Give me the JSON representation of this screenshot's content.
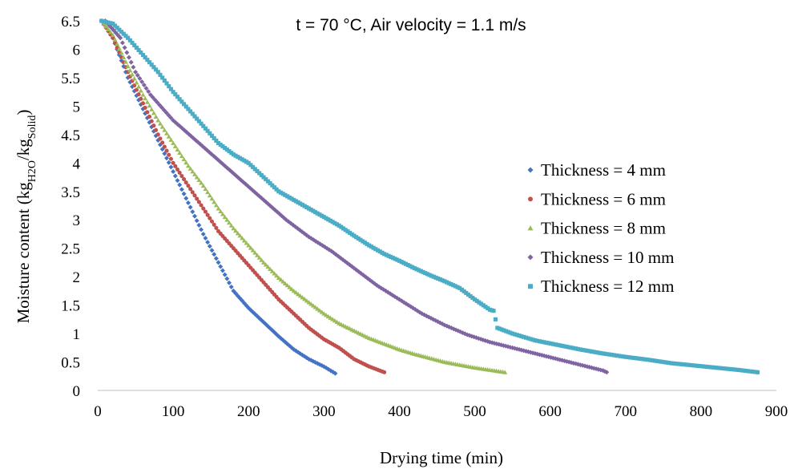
{
  "chart_data": {
    "type": "scatter",
    "title": "t = 70 °C, Air velocity = 1.1 m/s",
    "xlabel": "Drying time (min)",
    "ylabel": {
      "prefix": "Moisture content (kg",
      "sub1": "H2O",
      "middle": "/kg",
      "sub2": "Solid",
      "suffix": ")"
    },
    "xlim": [
      0,
      900
    ],
    "ylim": [
      0,
      6.5
    ],
    "x_ticks": [
      "0",
      "100",
      "200",
      "300",
      "400",
      "500",
      "600",
      "700",
      "800",
      "900"
    ],
    "y_ticks": [
      "0",
      "0.5",
      "1",
      "1.5",
      "2",
      "2.5",
      "3",
      "3.5",
      "4",
      "4.5",
      "5",
      "5.5",
      "6",
      "6.5"
    ],
    "grid": false,
    "legend_position": "right",
    "series": [
      {
        "name": "Thickness = 4 mm",
        "color": "#4472C4",
        "marker": "diamond",
        "points": [
          [
            5,
            6.5
          ],
          [
            20,
            6.2
          ],
          [
            40,
            5.5
          ],
          [
            60,
            4.95
          ],
          [
            80,
            4.4
          ],
          [
            100,
            3.85
          ],
          [
            120,
            3.3
          ],
          [
            140,
            2.75
          ],
          [
            160,
            2.25
          ],
          [
            180,
            1.75
          ],
          [
            200,
            1.45
          ],
          [
            220,
            1.2
          ],
          [
            240,
            0.95
          ],
          [
            260,
            0.72
          ],
          [
            280,
            0.55
          ],
          [
            300,
            0.42
          ],
          [
            315,
            0.3
          ]
        ]
      },
      {
        "name": "Thickness = 6 mm",
        "color": "#C0504D",
        "marker": "circle",
        "points": [
          [
            5,
            6.5
          ],
          [
            20,
            6.2
          ],
          [
            40,
            5.6
          ],
          [
            60,
            5.05
          ],
          [
            80,
            4.5
          ],
          [
            100,
            4.0
          ],
          [
            120,
            3.6
          ],
          [
            140,
            3.2
          ],
          [
            160,
            2.8
          ],
          [
            180,
            2.5
          ],
          [
            200,
            2.2
          ],
          [
            220,
            1.9
          ],
          [
            240,
            1.6
          ],
          [
            260,
            1.35
          ],
          [
            280,
            1.1
          ],
          [
            300,
            0.9
          ],
          [
            320,
            0.75
          ],
          [
            340,
            0.55
          ],
          [
            360,
            0.42
          ],
          [
            380,
            0.32
          ]
        ]
      },
      {
        "name": "Thickness = 8 mm",
        "color": "#9BBB59",
        "marker": "triangle",
        "points": [
          [
            5,
            6.5
          ],
          [
            20,
            6.25
          ],
          [
            40,
            5.7
          ],
          [
            60,
            5.2
          ],
          [
            80,
            4.75
          ],
          [
            100,
            4.35
          ],
          [
            120,
            3.95
          ],
          [
            140,
            3.6
          ],
          [
            160,
            3.2
          ],
          [
            180,
            2.85
          ],
          [
            200,
            2.55
          ],
          [
            220,
            2.25
          ],
          [
            240,
            1.98
          ],
          [
            260,
            1.75
          ],
          [
            280,
            1.55
          ],
          [
            300,
            1.35
          ],
          [
            320,
            1.18
          ],
          [
            340,
            1.05
          ],
          [
            360,
            0.92
          ],
          [
            380,
            0.82
          ],
          [
            400,
            0.72
          ],
          [
            420,
            0.64
          ],
          [
            440,
            0.57
          ],
          [
            460,
            0.5
          ],
          [
            480,
            0.45
          ],
          [
            500,
            0.4
          ],
          [
            520,
            0.36
          ],
          [
            540,
            0.32
          ]
        ]
      },
      {
        "name": "Thickness = 10 mm",
        "color": "#8064A2",
        "marker": "diamond",
        "points": [
          [
            10,
            6.5
          ],
          [
            30,
            6.2
          ],
          [
            50,
            5.6
          ],
          [
            70,
            5.2
          ],
          [
            100,
            4.75
          ],
          [
            130,
            4.4
          ],
          [
            160,
            4.05
          ],
          [
            190,
            3.7
          ],
          [
            220,
            3.35
          ],
          [
            250,
            3.0
          ],
          [
            280,
            2.7
          ],
          [
            310,
            2.45
          ],
          [
            340,
            2.15
          ],
          [
            370,
            1.85
          ],
          [
            400,
            1.6
          ],
          [
            430,
            1.35
          ],
          [
            460,
            1.15
          ],
          [
            490,
            0.98
          ],
          [
            520,
            0.85
          ],
          [
            550,
            0.75
          ],
          [
            580,
            0.65
          ],
          [
            610,
            0.55
          ],
          [
            640,
            0.45
          ],
          [
            670,
            0.35
          ],
          [
            675,
            0.32
          ]
        ]
      },
      {
        "name": "Thickness = 12 mm",
        "color": "#4BACC6",
        "marker": "square",
        "points": [
          [
            5,
            6.5
          ],
          [
            20,
            6.45
          ],
          [
            40,
            6.2
          ],
          [
            60,
            5.9
          ],
          [
            80,
            5.6
          ],
          [
            100,
            5.25
          ],
          [
            120,
            4.95
          ],
          [
            140,
            4.65
          ],
          [
            160,
            4.35
          ],
          [
            180,
            4.15
          ],
          [
            200,
            4.0
          ],
          [
            220,
            3.75
          ],
          [
            240,
            3.5
          ],
          [
            260,
            3.35
          ],
          [
            280,
            3.2
          ],
          [
            300,
            3.05
          ],
          [
            320,
            2.9
          ],
          [
            340,
            2.72
          ],
          [
            360,
            2.55
          ],
          [
            380,
            2.4
          ],
          [
            400,
            2.28
          ],
          [
            420,
            2.15
          ],
          [
            440,
            2.03
          ],
          [
            460,
            1.92
          ],
          [
            480,
            1.8
          ],
          [
            500,
            1.6
          ],
          [
            520,
            1.42
          ],
          [
            525,
            1.4
          ],
          [
            530,
            1.1
          ],
          [
            550,
            1.0
          ],
          [
            580,
            0.88
          ],
          [
            610,
            0.8
          ],
          [
            640,
            0.72
          ],
          [
            670,
            0.65
          ],
          [
            700,
            0.59
          ],
          [
            730,
            0.54
          ],
          [
            760,
            0.48
          ],
          [
            790,
            0.44
          ],
          [
            820,
            0.4
          ],
          [
            850,
            0.36
          ],
          [
            875,
            0.32
          ]
        ]
      }
    ]
  }
}
